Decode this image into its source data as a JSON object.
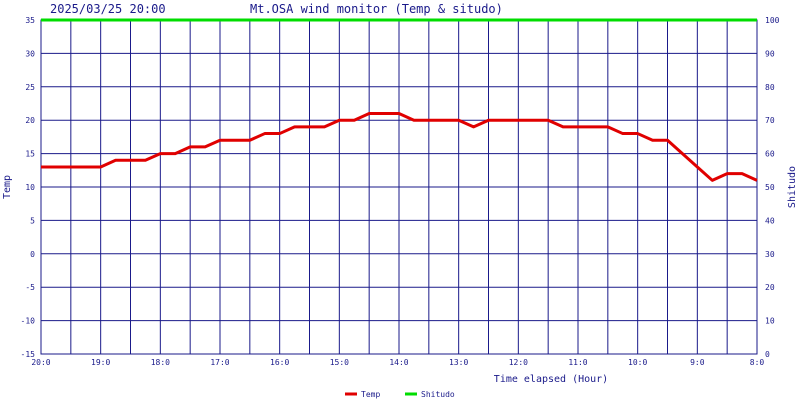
{
  "header": {
    "datetime": "2025/03/25 20:00",
    "title": "Mt.OSA wind monitor (Temp & situdo)"
  },
  "colors": {
    "grid": "#1a1a8a",
    "temp": "#e00000",
    "shitudo": "#00dd00",
    "text": "#1a1a8a"
  },
  "chart_data": {
    "type": "line",
    "title": "Mt.OSA wind monitor (Temp & situdo)",
    "xlabel": "Time elapsed (Hour)",
    "ylabel_left": "Temp",
    "ylabel_right": "Shitudo",
    "x_tick_labels": [
      "20:0",
      "19:0",
      "18:0",
      "17:0",
      "16:0",
      "15:0",
      "14:0",
      "13:0",
      "12:0",
      "11:0",
      "10:0",
      "9:0",
      "8:0"
    ],
    "xlim": [
      0,
      12
    ],
    "x_direction": "reversed",
    "ylim_left": [
      -15,
      35
    ],
    "y_ticks_left": [
      35,
      30,
      25,
      20,
      15,
      10,
      5,
      0,
      -5,
      -10,
      -15
    ],
    "ylim_right": [
      0,
      100
    ],
    "y_ticks_right": [
      100,
      90,
      80,
      70,
      60,
      50,
      40,
      30,
      20,
      10,
      0
    ],
    "grid": true,
    "legend_position": "bottom-center",
    "series": [
      {
        "name": "Temp",
        "axis": "left",
        "color": "#e00000",
        "x": [
          0,
          0.25,
          0.5,
          0.75,
          1,
          1.25,
          1.5,
          1.75,
          2,
          2.25,
          2.5,
          2.75,
          3,
          3.25,
          3.5,
          3.75,
          4,
          4.25,
          4.5,
          4.75,
          5,
          5.25,
          5.5,
          5.75,
          6,
          6.25,
          6.5,
          6.75,
          7,
          7.25,
          7.5,
          7.75,
          8,
          8.25,
          8.5,
          8.75,
          9,
          9.25,
          9.5,
          9.75,
          10,
          10.25,
          10.5,
          10.75,
          11,
          11.25,
          11.5,
          11.75,
          12
        ],
        "values": [
          13,
          13,
          13,
          13,
          13,
          14,
          14,
          14,
          15,
          15,
          16,
          16,
          17,
          17,
          17,
          18,
          18,
          19,
          19,
          19,
          20,
          20,
          21,
          21,
          21,
          20,
          20,
          20,
          20,
          19,
          20,
          20,
          20,
          20,
          20,
          19,
          19,
          19,
          19,
          18,
          18,
          17,
          17,
          15,
          13,
          11,
          12,
          12,
          11
        ]
      },
      {
        "name": "Shitudo",
        "axis": "right",
        "color": "#00dd00",
        "x": [
          0,
          12
        ],
        "values": [
          100,
          100
        ]
      }
    ]
  }
}
